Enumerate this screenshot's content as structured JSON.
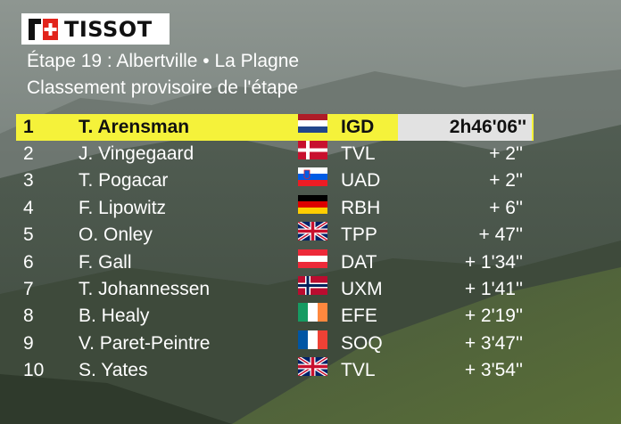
{
  "brand": {
    "name": "TISSOT"
  },
  "header": {
    "stage": "Étape 19 : Albertville • La Plagne",
    "classification": "Classement provisoire de l'étape"
  },
  "colors": {
    "leader_bar": "#f5f23a",
    "time_cell": "#e2e2e2",
    "text": "#ffffff",
    "brand_red": "#e2231a"
  },
  "rows": [
    {
      "pos": "1",
      "rider": "T. Arensman",
      "flag": "netherlands-flag",
      "team": "IGD",
      "gap": "2h46'06''"
    },
    {
      "pos": "2",
      "rider": "J. Vingegaard",
      "flag": "denmark-flag",
      "team": "TVL",
      "gap": "+ 2''"
    },
    {
      "pos": "3",
      "rider": "T. Pogacar",
      "flag": "slovenia-flag",
      "team": "UAD",
      "gap": "+ 2''"
    },
    {
      "pos": "4",
      "rider": "F. Lipowitz",
      "flag": "germany-flag",
      "team": "RBH",
      "gap": "+ 6''"
    },
    {
      "pos": "5",
      "rider": "O. Onley",
      "flag": "uk-flag",
      "team": "TPP",
      "gap": "+ 47''"
    },
    {
      "pos": "6",
      "rider": "F. Gall",
      "flag": "austria-flag",
      "team": "DAT",
      "gap": "+ 1'34''"
    },
    {
      "pos": "7",
      "rider": "T. Johannessen",
      "flag": "norway-flag",
      "team": "UXM",
      "gap": "+ 1'41''"
    },
    {
      "pos": "8",
      "rider": "B. Healy",
      "flag": "ireland-flag",
      "team": "EFE",
      "gap": "+ 2'19''"
    },
    {
      "pos": "9",
      "rider": "V. Paret-Peintre",
      "flag": "france-flag",
      "team": "SOQ",
      "gap": "+ 3'47''"
    },
    {
      "pos": "10",
      "rider": "S. Yates",
      "flag": "uk-flag",
      "team": "TVL",
      "gap": "+ 3'54''"
    }
  ]
}
